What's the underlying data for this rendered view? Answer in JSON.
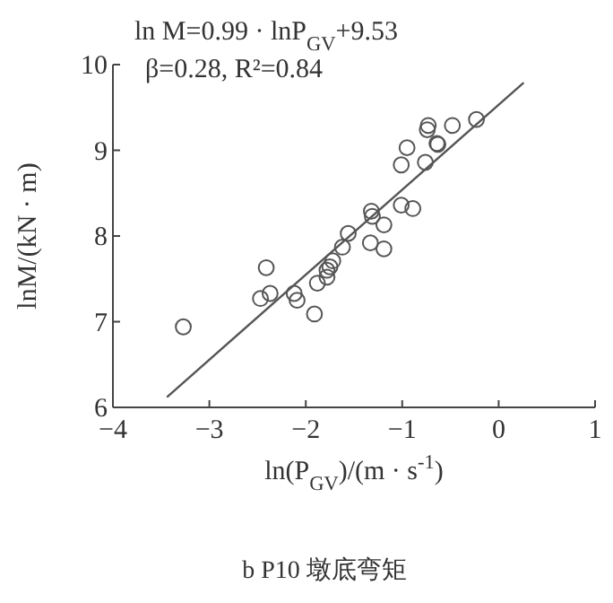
{
  "chart_data": {
    "type": "scatter",
    "xlabel": "ln(P$_{GV}$)/(m · s$^{-1}$)",
    "ylabel": "lnM/(kN · m)",
    "xlim": [
      -4,
      1
    ],
    "xticks": [
      -4,
      -3,
      -2,
      -1,
      0,
      1
    ],
    "ylim": [
      6,
      10
    ],
    "yticks": [
      6,
      7,
      8,
      9,
      10
    ],
    "grid": false,
    "marker": "circle",
    "series": [
      {
        "color": "#555555",
        "x": [
          -3.27,
          -2.41,
          -2.47,
          -2.37,
          -2.12,
          -2.09,
          -1.91,
          -1.88,
          -1.78,
          -1.75,
          -1.72,
          -1.78,
          -1.62,
          -1.56,
          -1.33,
          -1.32,
          -1.31,
          -1.19,
          -1.19,
          -1.01,
          -0.95,
          -1.01,
          -0.89,
          -0.76,
          -0.74,
          -0.73,
          -0.64,
          -0.63,
          -0.48,
          -0.23
        ],
        "values": [
          6.94,
          7.63,
          7.27,
          7.33,
          7.33,
          7.25,
          7.09,
          7.45,
          7.52,
          7.64,
          7.71,
          7.6,
          7.87,
          8.03,
          7.92,
          8.29,
          8.23,
          8.13,
          7.85,
          8.83,
          9.03,
          8.36,
          8.32,
          8.86,
          9.24,
          9.29,
          9.08,
          9.07,
          9.29,
          9.36
        ]
      },
      {
        "type": "line",
        "marker": "none",
        "color": "#555555",
        "x": [
          -3.44,
          0.26
        ],
        "values": [
          6.12,
          9.79
        ]
      }
    ],
    "annotations": [
      "ln M=0.99 · lnP$_{GV}$+9.53",
      "β=0.28, R²=0.84",
      "b P10 墩底弯矩"
    ]
  }
}
